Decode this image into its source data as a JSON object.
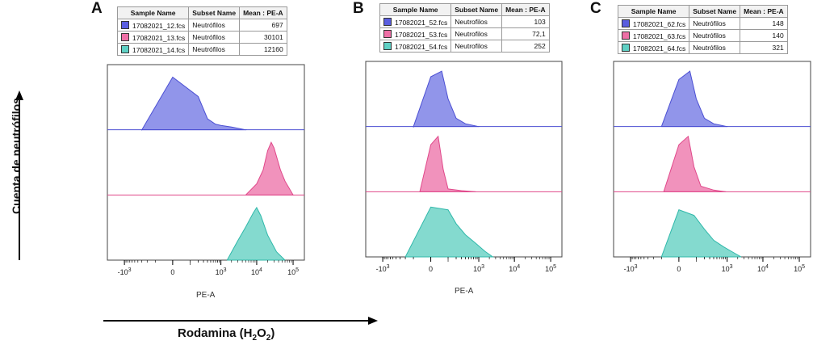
{
  "y_axis_label": "Cuenta de neutrófilos",
  "x_axis_label_prefix": "Rodamina (H",
  "x_axis_label_sub1": "2",
  "x_axis_label_mid": "O",
  "x_axis_label_sub2": "2",
  "x_axis_label_suffix": ")",
  "colors": {
    "blue": "#4b4fd3",
    "blue_fill": "#7e82e6",
    "pink": "#e0488a",
    "pink_fill": "#ee7fb0",
    "teal": "#2fb8aa",
    "teal_fill": "#6fd3c7"
  },
  "legend_headers": [
    "Sample Name",
    "Subset Name",
    "Mean : PE-A"
  ],
  "panels": [
    {
      "letter": "A",
      "xlabel": "PE-A",
      "rows": [
        {
          "sample": "17082021_12.fcs",
          "subset": "Neutrófilos",
          "mean": "697",
          "color": "#5a5ee0"
        },
        {
          "sample": "17082021_13.fcs",
          "subset": "Neutrófilos",
          "mean": "30101",
          "color": "#ee6fa6"
        },
        {
          "sample": "17082021_14.fcs",
          "subset": "Neutrófilos",
          "mean": "12160",
          "color": "#5fd0c4"
        }
      ]
    },
    {
      "letter": "B",
      "xlabel": "PE-A",
      "rows": [
        {
          "sample": "17082021_52.fcs",
          "subset": "Neutrofilos",
          "mean": "103",
          "color": "#5a5ee0"
        },
        {
          "sample": "17082021_53.fcs",
          "subset": "Neutrofilos",
          "mean": "72,1",
          "color": "#ee6fa6"
        },
        {
          "sample": "17082021_54.fcs",
          "subset": "Neutrofilos",
          "mean": "252",
          "color": "#5fd0c4"
        }
      ]
    },
    {
      "letter": "C",
      "xlabel": "",
      "rows": [
        {
          "sample": "17082021_62.fcs",
          "subset": "Neutrófilos",
          "mean": "148",
          "color": "#5a5ee0"
        },
        {
          "sample": "17082021_63.fcs",
          "subset": "Neutrófilos",
          "mean": "140",
          "color": "#ee6fa6"
        },
        {
          "sample": "17082021_64.fcs",
          "subset": "Neutrófilos",
          "mean": "321",
          "color": "#5fd0c4"
        }
      ]
    }
  ],
  "chart_data": [
    {
      "type": "area",
      "panel": "A",
      "xscale": "biexponential",
      "xlabel": "PE-A",
      "tick_labels": [
        "-10^3",
        "0",
        "10^3",
        "10^4",
        "10^5"
      ],
      "tick_values": [
        -1000,
        0,
        1000,
        10000,
        100000
      ],
      "series": [
        {
          "name": "17082021_12.fcs",
          "x": [
            -300,
            0,
            200,
            400,
            700,
            1000,
            2000,
            5000
          ],
          "values": [
            0,
            0.95,
            0.6,
            0.2,
            0.1,
            0.08,
            0.05,
            0
          ]
        },
        {
          "name": "17082021_13.fcs",
          "x": [
            5000,
            10000,
            15000,
            20000,
            25000,
            30000,
            45000,
            60000,
            100000
          ],
          "values": [
            0,
            0.2,
            0.45,
            0.8,
            0.95,
            0.85,
            0.45,
            0.25,
            0
          ]
        },
        {
          "name": "17082021_14.fcs",
          "x": [
            1500,
            3000,
            5000,
            8000,
            10000,
            13000,
            20000,
            35000,
            60000
          ],
          "values": [
            0,
            0.35,
            0.6,
            0.85,
            0.95,
            0.8,
            0.45,
            0.15,
            0
          ]
        }
      ]
    },
    {
      "type": "area",
      "panel": "B",
      "xscale": "biexponential",
      "xlabel": "PE-A",
      "tick_labels": [
        "-10^3",
        "0",
        "10^3",
        "10^4",
        "10^5"
      ],
      "tick_values": [
        -1000,
        0,
        1000,
        10000,
        100000
      ],
      "series": [
        {
          "name": "17082021_52.fcs",
          "x": [
            -100,
            0,
            50,
            100,
            200,
            400,
            1000
          ],
          "values": [
            0,
            0.9,
            1,
            0.5,
            0.15,
            0.05,
            0
          ]
        },
        {
          "name": "17082021_53.fcs",
          "x": [
            -50,
            0,
            30,
            60,
            100,
            300,
            800
          ],
          "values": [
            0,
            0.85,
            1,
            0.4,
            0.05,
            0.02,
            0
          ]
        },
        {
          "name": "17082021_54.fcs",
          "x": [
            -200,
            0,
            100,
            200,
            400,
            800,
            1500,
            2500
          ],
          "values": [
            0,
            0.9,
            0.85,
            0.6,
            0.4,
            0.25,
            0.1,
            0
          ]
        }
      ]
    },
    {
      "type": "area",
      "panel": "C",
      "xscale": "biexponential",
      "xlabel": "",
      "tick_labels": [
        "-10^3",
        "0",
        "10^3",
        "10^4",
        "10^5"
      ],
      "tick_values": [
        -1000,
        0,
        1000,
        10000,
        100000
      ],
      "series": [
        {
          "name": "17082021_62.fcs",
          "x": [
            -100,
            0,
            50,
            100,
            200,
            400,
            1000
          ],
          "values": [
            0,
            0.85,
            1,
            0.5,
            0.15,
            0.05,
            0
          ]
        },
        {
          "name": "17082021_63.fcs",
          "x": [
            -80,
            0,
            40,
            80,
            150,
            400,
            900
          ],
          "values": [
            0,
            0.85,
            1,
            0.45,
            0.1,
            0.03,
            0
          ]
        },
        {
          "name": "17082021_64.fcs",
          "x": [
            -100,
            0,
            80,
            200,
            400,
            800,
            1500,
            2500
          ],
          "values": [
            0,
            0.85,
            0.75,
            0.5,
            0.3,
            0.18,
            0.08,
            0
          ]
        }
      ]
    }
  ]
}
